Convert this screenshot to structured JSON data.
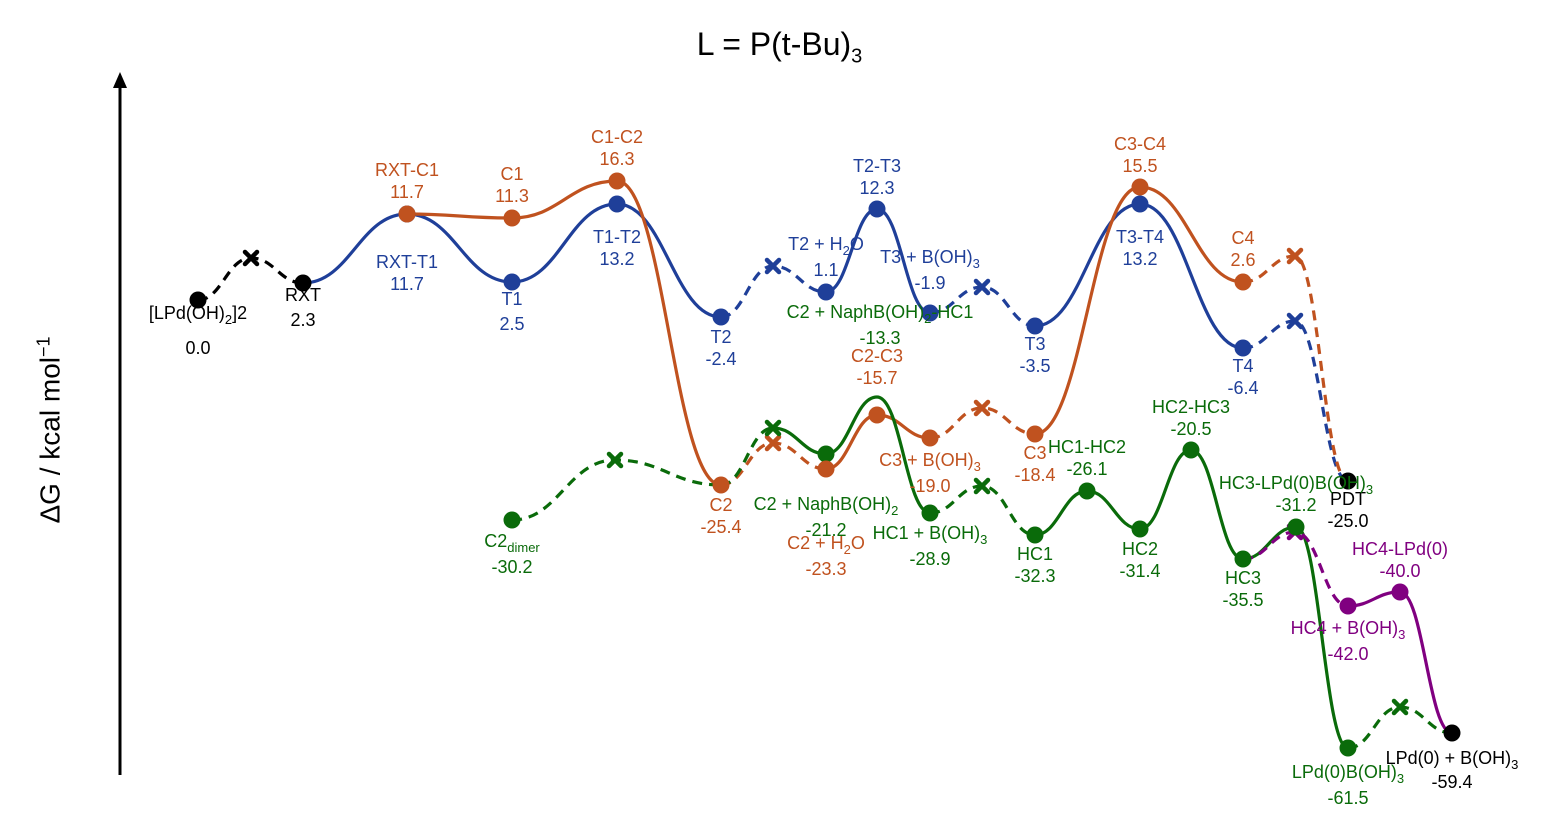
{
  "chart_data": {
    "type": "line",
    "title": "L = P(t-Bu)3",
    "ylabel": "ΔG / kcal mol−1",
    "xlabel": "",
    "colors": {
      "black": "#000000",
      "blue": "#1f3f99",
      "orange": "#c0521f",
      "green": "#0a6b0a",
      "purple": "#800080"
    },
    "nodes": [
      {
        "id": "LPd",
        "label": "[LPd(OH)2]2",
        "value": "0.0",
        "color": "black"
      },
      {
        "id": "RXT",
        "label": "RXT",
        "value": "2.3",
        "color": "black"
      },
      {
        "id": "RXT-T1",
        "label": "RXT-T1",
        "value": "11.7",
        "color": "blue"
      },
      {
        "id": "RXT-C1",
        "label": "RXT-C1",
        "value": "11.7",
        "color": "orange"
      },
      {
        "id": "T1",
        "label": "T1",
        "value": "2.5",
        "color": "blue"
      },
      {
        "id": "C1",
        "label": "C1",
        "value": "11.3",
        "color": "orange"
      },
      {
        "id": "T1-T2",
        "label": "T1-T2",
        "value": "13.2",
        "color": "blue"
      },
      {
        "id": "C1-C2",
        "label": "C1-C2",
        "value": "16.3",
        "color": "orange"
      },
      {
        "id": "T2",
        "label": "T2",
        "value": "-2.4",
        "color": "blue"
      },
      {
        "id": "T2H2O",
        "label": "T2 + H2O",
        "value": "1.1",
        "color": "blue"
      },
      {
        "id": "T2-T3",
        "label": "T2-T3",
        "value": "12.3",
        "color": "blue"
      },
      {
        "id": "T3BOH",
        "label": "T3 + B(OH)3",
        "value": "-1.9",
        "color": "blue"
      },
      {
        "id": "T3",
        "label": "T3",
        "value": "-3.5",
        "color": "blue"
      },
      {
        "id": "T3-T4",
        "label": "T3-T4",
        "value": "13.2",
        "color": "blue"
      },
      {
        "id": "C3-C4",
        "label": "C3-C4",
        "value": "15.5",
        "color": "orange"
      },
      {
        "id": "T4",
        "label": "T4",
        "value": "-6.4",
        "color": "blue"
      },
      {
        "id": "C4",
        "label": "C4",
        "value": "2.6",
        "color": "orange"
      },
      {
        "id": "PDT",
        "label": "PDT",
        "value": "-25.0",
        "color": "black"
      },
      {
        "id": "C2N-HC1",
        "label": "C2 + NaphB(OH)2-HC1",
        "value": "-13.3",
        "color": "green"
      },
      {
        "id": "C2-C3",
        "label": "C2-C3",
        "value": "-15.7",
        "color": "orange"
      },
      {
        "id": "C3BOH",
        "label": "C3 + B(OH)3",
        "value": "-19.0",
        "color": "orange"
      },
      {
        "id": "C3",
        "label": "C3",
        "value": "-18.4",
        "color": "orange"
      },
      {
        "id": "C2",
        "label": "C2",
        "value": "-25.4",
        "color": "orange"
      },
      {
        "id": "C2N",
        "label": "C2 + NaphB(OH)2",
        "value": "-21.2",
        "color": "green"
      },
      {
        "id": "C2H2O",
        "label": "C2 + H2O",
        "value": "-23.3",
        "color": "orange"
      },
      {
        "id": "HC1BOH",
        "label": "HC1 + B(OH)3",
        "value": "-28.9",
        "color": "green"
      },
      {
        "id": "C2dimer",
        "label": "C2dimer",
        "value": "-30.2",
        "color": "green"
      },
      {
        "id": "HC1",
        "label": "HC1",
        "value": "-32.3",
        "color": "green"
      },
      {
        "id": "HC1-HC2",
        "label": "HC1-HC2",
        "value": "-26.1",
        "color": "green"
      },
      {
        "id": "HC2",
        "label": "HC2",
        "value": "-31.4",
        "color": "green"
      },
      {
        "id": "HC2-HC3",
        "label": "HC2-HC3",
        "value": "-20.5",
        "color": "green"
      },
      {
        "id": "HC3",
        "label": "HC3",
        "value": "-35.5",
        "color": "green"
      },
      {
        "id": "HC3-LPd",
        "label": "HC3-LPd(0)B(OH)3",
        "value": "-31.2",
        "color": "green"
      },
      {
        "id": "HC4-LPd",
        "label": "HC4-LPd(0)",
        "value": "-40.0",
        "color": "purple"
      },
      {
        "id": "HC4BOH",
        "label": "HC4 + B(OH)3",
        "value": "-42.0",
        "color": "purple"
      },
      {
        "id": "LPd0BOH",
        "label": "LPd(0)B(OH)3",
        "value": "-61.5",
        "color": "green"
      },
      {
        "id": "LPd0plus",
        "label": "LPd(0) + B(OH)3",
        "value": "-59.4",
        "color": "black"
      }
    ]
  }
}
